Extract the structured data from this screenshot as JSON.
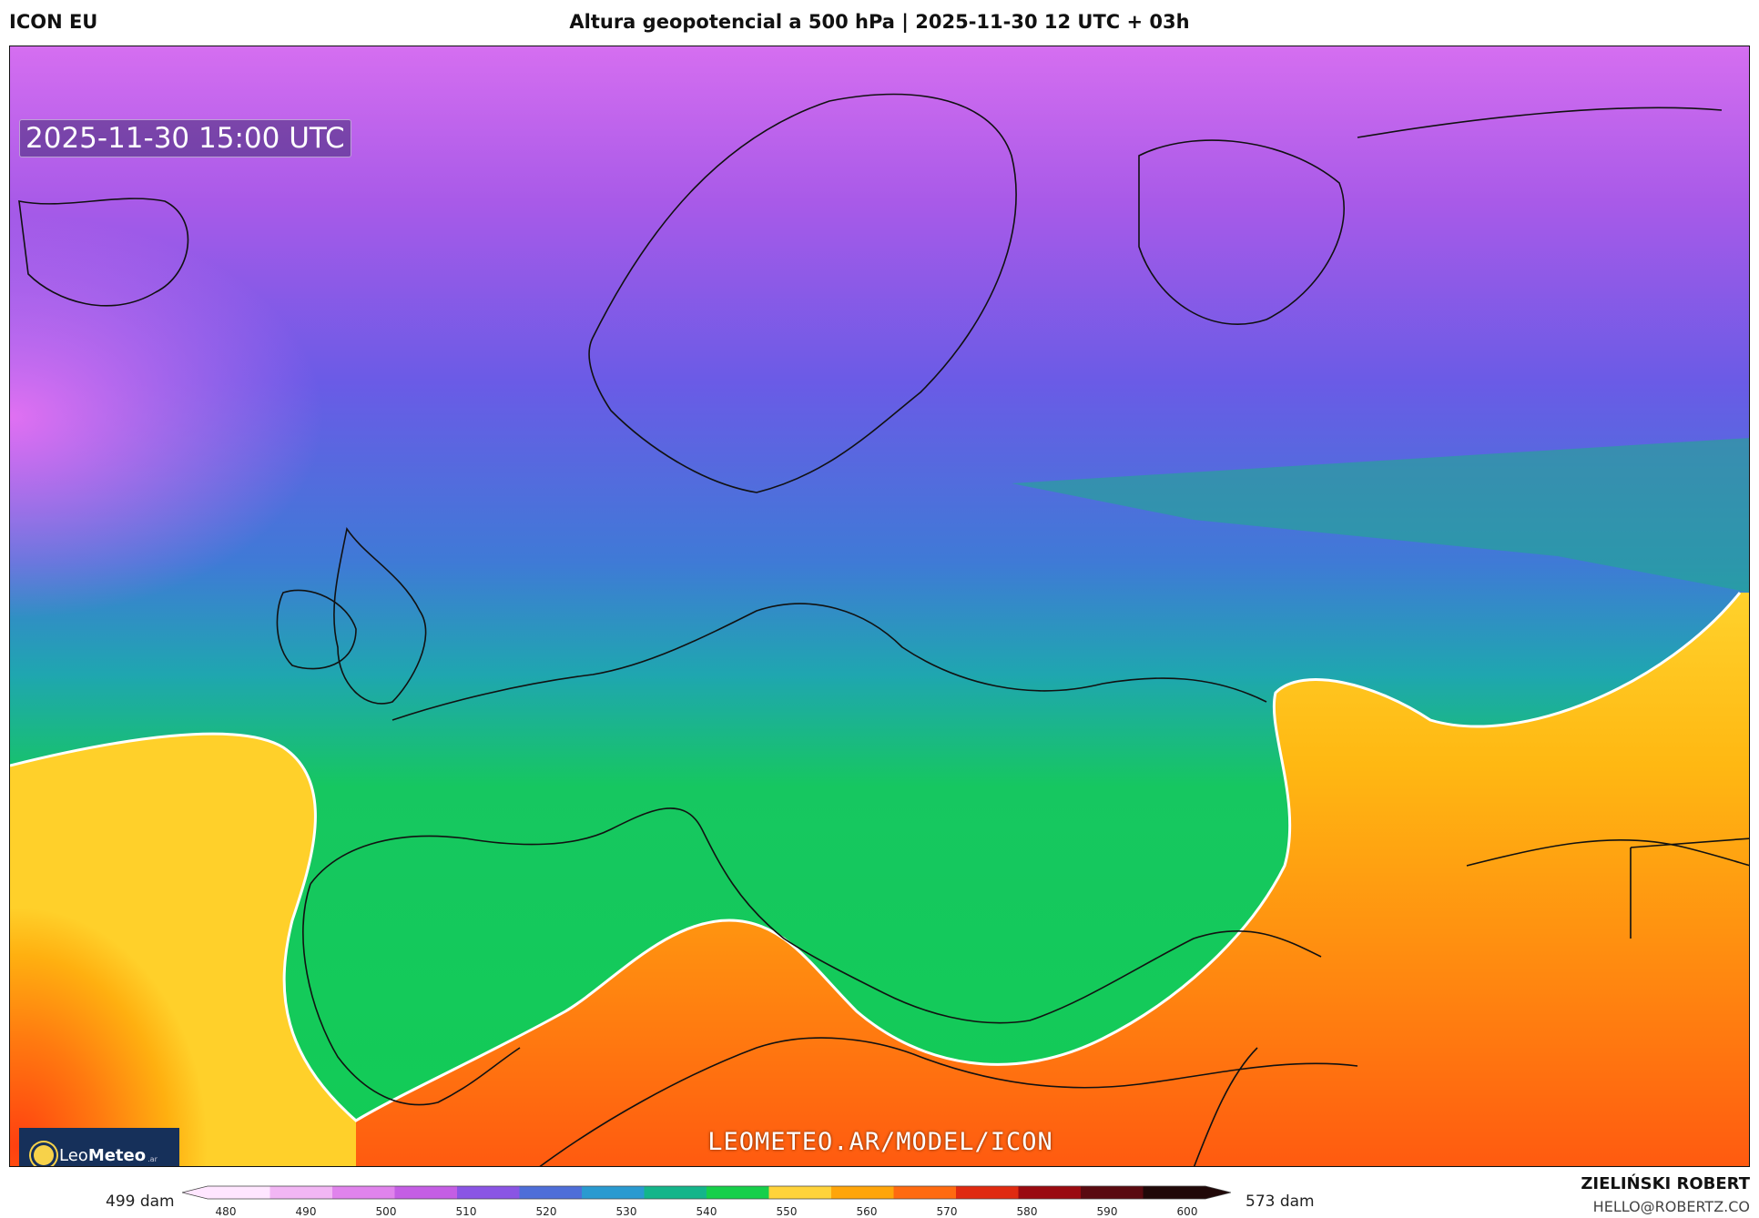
{
  "header": {
    "model": "ICON EU",
    "title": "Altura geopotencial a 500 hPa | 2025-11-30 12 UTC + 03h"
  },
  "map": {
    "timestamp": "2025-11-30 15:00 UTC",
    "watermark": "LEOMETEO.AR/MODEL/ICON",
    "logo_text_light": "Leo",
    "logo_text_bold": "Meteo",
    "logo_suffix": ".ar"
  },
  "colorbar": {
    "min_label": "499 dam",
    "max_label": "573 dam",
    "ticks": [
      "480",
      "490",
      "500",
      "510",
      "520",
      "530",
      "540",
      "550",
      "560",
      "570",
      "580",
      "590",
      "600"
    ],
    "colors": [
      "#ffe6ff",
      "#f2b6f4",
      "#e083ec",
      "#c45ee4",
      "#8a55e4",
      "#4e6ed8",
      "#2a9ad0",
      "#14b58a",
      "#16cf4a",
      "#ffd33a",
      "#ffa50a",
      "#ff6a10",
      "#e02a10",
      "#9a0a10",
      "#5a0a10",
      "#200808"
    ]
  },
  "footer": {
    "author": "ZIELIŃSKI ROBERT",
    "email": "HELLO@ROBERTZ.CO"
  }
}
